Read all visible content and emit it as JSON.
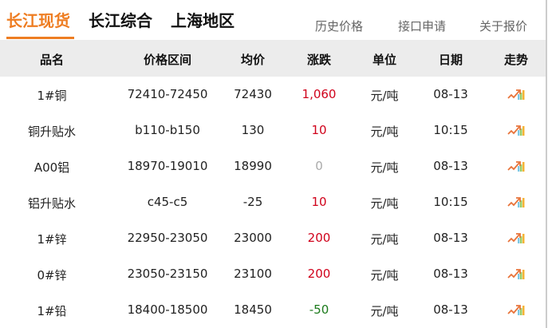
{
  "tabs": [
    {
      "label": "长江现货",
      "active": true
    },
    {
      "label": "长江综合"
    },
    {
      "label": "上海地区"
    }
  ],
  "links": [
    "历史价格",
    "接口申请",
    "关于报价"
  ],
  "accent": "#ee7d22",
  "columns": [
    "品名",
    "价格区间",
    "均价",
    "涨跌",
    "单位",
    "日期",
    "走势"
  ],
  "rows": [
    {
      "name": "1#铜",
      "range": "72410-72450",
      "avg": "72430",
      "change": "1,060",
      "dir": "up",
      "unit": "元/吨",
      "date": "08-13",
      "trend": "trend-icon"
    },
    {
      "name": "铜升贴水",
      "range": "b110-b150",
      "avg": "130",
      "change": "10",
      "dir": "up",
      "unit": "元/吨",
      "date": "10:15",
      "trend": "trend-icon"
    },
    {
      "name": "A00铝",
      "range": "18970-19010",
      "avg": "18990",
      "change": "0",
      "dir": "flat",
      "unit": "元/吨",
      "date": "08-13",
      "trend": "trend-icon"
    },
    {
      "name": "铝升贴水",
      "range": "c45-c5",
      "avg": "-25",
      "change": "10",
      "dir": "up",
      "unit": "元/吨",
      "date": "10:15",
      "trend": "trend-icon"
    },
    {
      "name": "1#锌",
      "range": "22950-23050",
      "avg": "23000",
      "change": "200",
      "dir": "up",
      "unit": "元/吨",
      "date": "08-13",
      "trend": "trend-icon"
    },
    {
      "name": "0#锌",
      "range": "23050-23150",
      "avg": "23100",
      "change": "200",
      "dir": "up",
      "unit": "元/吨",
      "date": "08-13",
      "trend": "trend-icon"
    },
    {
      "name": "1#铅",
      "range": "18400-18500",
      "avg": "18450",
      "change": "-50",
      "dir": "down",
      "unit": "元/吨",
      "date": "08-13",
      "trend": "trend-icon"
    }
  ],
  "colors": {
    "up": "#d0021b",
    "flat": "#aaaaaa",
    "down": "#1b7a1b"
  }
}
